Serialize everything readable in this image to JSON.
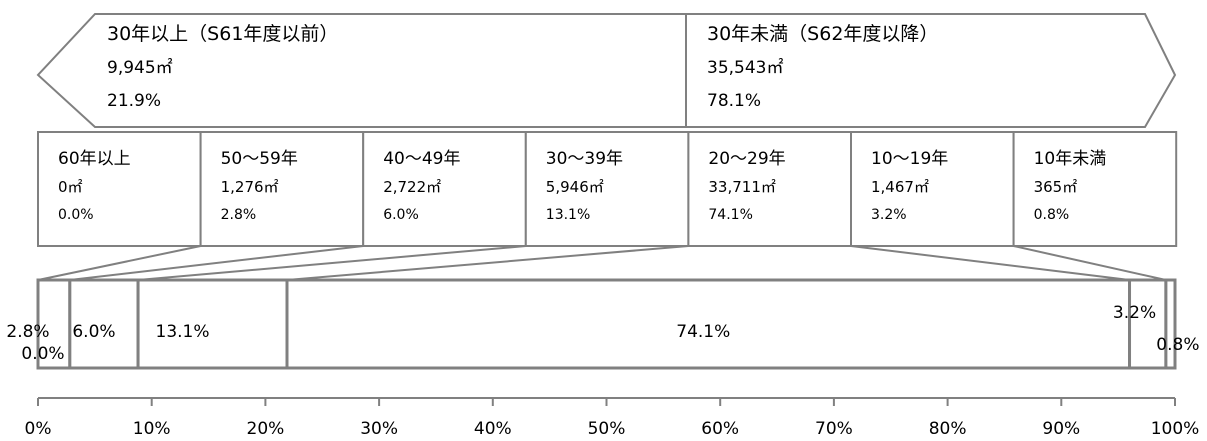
{
  "chart_data": {
    "type": "bar",
    "stacked": true,
    "orientation": "horizontal",
    "xlim": [
      0,
      100
    ],
    "x_ticks": [
      "0%",
      "10%",
      "20%",
      "30%",
      "40%",
      "50%",
      "60%",
      "70%",
      "80%",
      "90%",
      "100%"
    ],
    "groups": [
      {
        "label": "30年以上（S61年度以前）",
        "area": "9,945㎡",
        "pct_label": "21.9%",
        "value": 21.9
      },
      {
        "label": "30年未満（S62年度以降）",
        "area": "35,543㎡",
        "pct_label": "78.1%",
        "value": 78.1
      }
    ],
    "categories": [
      "60年以上",
      "50～59年",
      "40～49年",
      "30～39年",
      "20～29年",
      "10～19年",
      "10年未満"
    ],
    "areas": [
      "0㎡",
      "1,276㎡",
      "2,722㎡",
      "5,946㎡",
      "33,711㎡",
      "1,467㎡",
      "365㎡"
    ],
    "pct_labels": [
      "0.0%",
      "2.8%",
      "6.0%",
      "13.1%",
      "74.1%",
      "3.2%",
      "0.8%"
    ],
    "values": [
      0.0,
      2.8,
      6.0,
      13.1,
      74.1,
      3.2,
      0.8
    ],
    "colors": {
      "stroke": "#808080",
      "fill": "#ffffff",
      "text": "#111111"
    }
  }
}
